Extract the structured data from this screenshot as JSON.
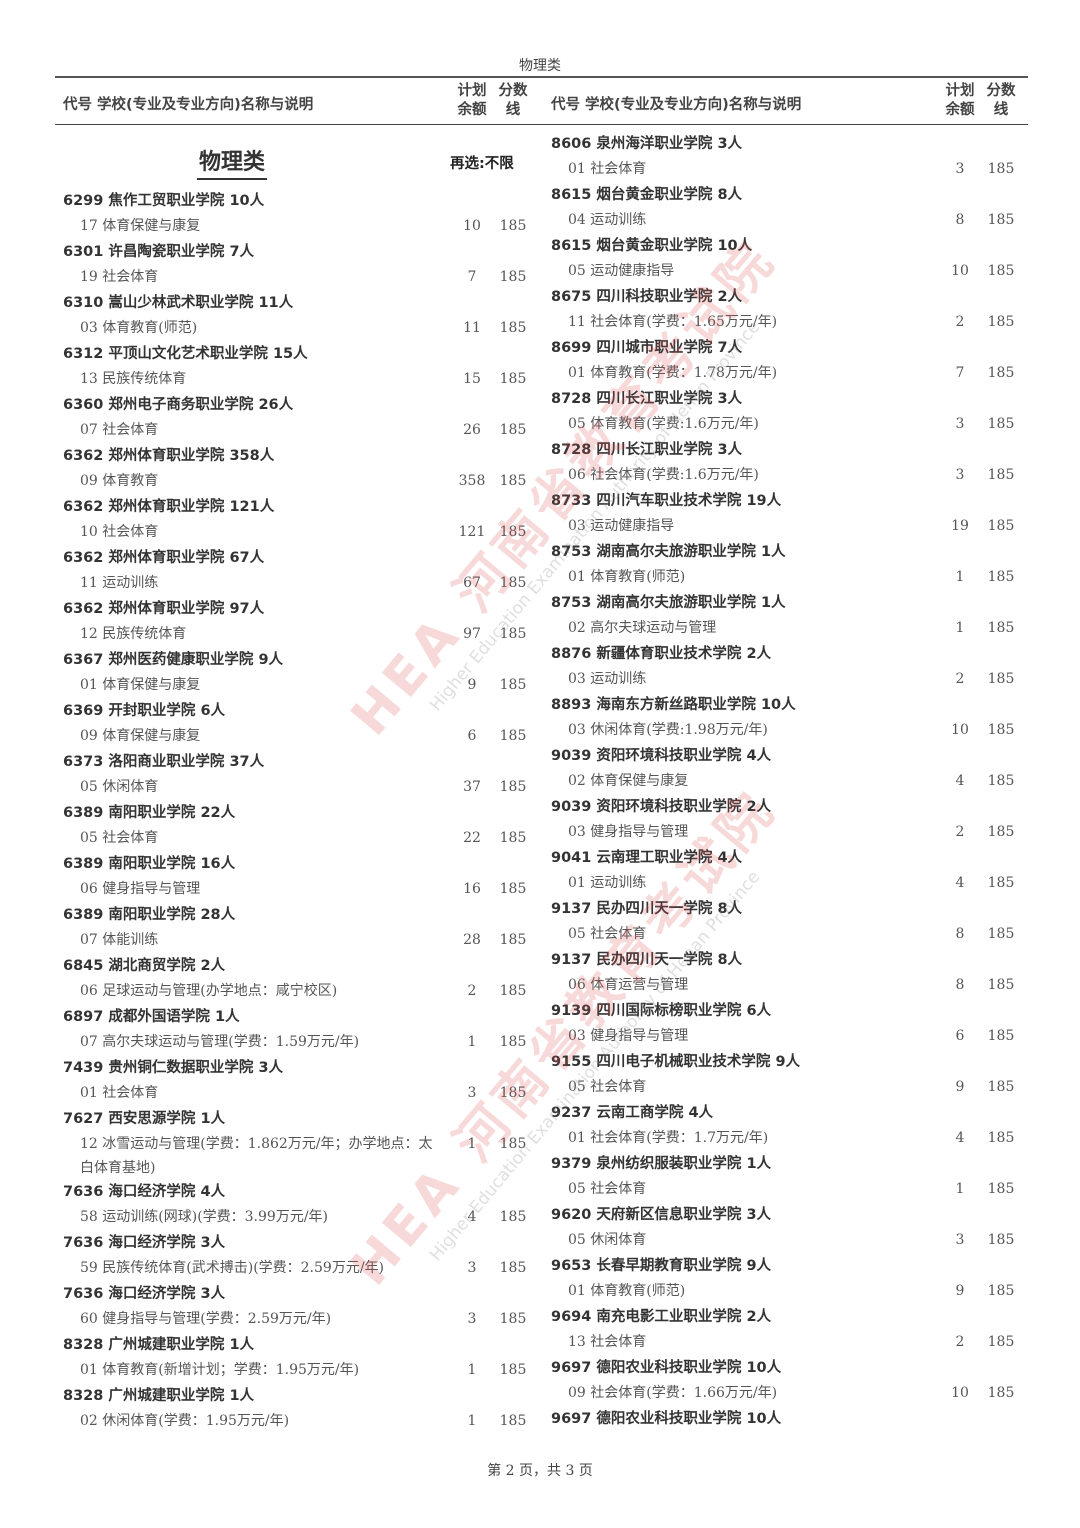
{
  "page_title": "物理类",
  "header": {
    "desc": "代号 学校(专业及专业方向)名称与说明",
    "plan_line1": "计划",
    "plan_line2": "余额",
    "score_line1": "分数",
    "score_line2": "线"
  },
  "category": {
    "title": "物理类",
    "note": "再选:不限"
  },
  "watermark": {
    "text": "HEA 河南省教育考试院",
    "subtext": "Higher Education Examination Authority of Henan Province",
    "color": "#dc5050"
  },
  "left_entries": [
    {
      "school": "6299 焦作工贸职业学院 10人",
      "major": "17 体育保健与康复",
      "plan": "10",
      "score": "185"
    },
    {
      "school": "6301 许昌陶瓷职业学院 7人",
      "major": "19 社会体育",
      "plan": "7",
      "score": "185"
    },
    {
      "school": "6310 嵩山少林武术职业学院 11人",
      "major": "03 体育教育(师范)",
      "plan": "11",
      "score": "185"
    },
    {
      "school": "6312 平顶山文化艺术职业学院 15人",
      "major": "13 民族传统体育",
      "plan": "15",
      "score": "185"
    },
    {
      "school": "6360 郑州电子商务职业学院 26人",
      "major": "07 社会体育",
      "plan": "26",
      "score": "185"
    },
    {
      "school": "6362 郑州体育职业学院 358人",
      "major": "09 体育教育",
      "plan": "358",
      "score": "185"
    },
    {
      "school": "6362 郑州体育职业学院 121人",
      "major": "10 社会体育",
      "plan": "121",
      "score": "185"
    },
    {
      "school": "6362 郑州体育职业学院 67人",
      "major": "11 运动训练",
      "plan": "67",
      "score": "185"
    },
    {
      "school": "6362 郑州体育职业学院 97人",
      "major": "12 民族传统体育",
      "plan": "97",
      "score": "185"
    },
    {
      "school": "6367 郑州医药健康职业学院 9人",
      "major": "01 体育保健与康复",
      "plan": "9",
      "score": "185"
    },
    {
      "school": "6369 开封职业学院 6人",
      "major": "09 体育保健与康复",
      "plan": "6",
      "score": "185"
    },
    {
      "school": "6373 洛阳商业职业学院 37人",
      "major": "05 休闲体育",
      "plan": "37",
      "score": "185"
    },
    {
      "school": "6389 南阳职业学院 22人",
      "major": "05 社会体育",
      "plan": "22",
      "score": "185"
    },
    {
      "school": "6389 南阳职业学院 16人",
      "major": "06 健身指导与管理",
      "plan": "16",
      "score": "185"
    },
    {
      "school": "6389 南阳职业学院 28人",
      "major": "07 体能训练",
      "plan": "28",
      "score": "185"
    },
    {
      "school": "6845 湖北商贸学院 2人",
      "major": "06 足球运动与管理(办学地点：咸宁校区)",
      "plan": "2",
      "score": "185"
    },
    {
      "school": "6897 成都外国语学院 1人",
      "major": "07 高尔夫球运动与管理(学费：1.59万元/年)",
      "plan": "1",
      "score": "185"
    },
    {
      "school": "7439 贵州铜仁数据职业学院 3人",
      "major": "01 社会体育",
      "plan": "3",
      "score": "185"
    },
    {
      "school": "7627 西安思源学院 1人",
      "major": "12 冰雪运动与管理(学费：1.862万元/年；办学地点：太白体育基地)",
      "plan": "1",
      "score": "185"
    },
    {
      "school": "7636 海口经济学院 4人",
      "major": "58 运动训练(网球)(学费：3.99万元/年)",
      "plan": "4",
      "score": "185"
    },
    {
      "school": "7636 海口经济学院 3人",
      "major": "59 民族传统体育(武术搏击)(学费：2.59万元/年)",
      "plan": "3",
      "score": "185"
    },
    {
      "school": "7636 海口经济学院 3人",
      "major": "60 健身指导与管理(学费：2.59万元/年)",
      "plan": "3",
      "score": "185"
    },
    {
      "school": "8328 广州城建职业学院 1人",
      "major": "01 体育教育(新增计划；学费：1.95万元/年)",
      "plan": "1",
      "score": "185"
    },
    {
      "school": "8328 广州城建职业学院 1人",
      "major": "02 休闲体育(学费：1.95万元/年)",
      "plan": "1",
      "score": "185"
    }
  ],
  "right_entries": [
    {
      "school": "8606 泉州海洋职业学院 3人",
      "major": "01 社会体育",
      "plan": "3",
      "score": "185"
    },
    {
      "school": "8615 烟台黄金职业学院 8人",
      "major": "04 运动训练",
      "plan": "8",
      "score": "185"
    },
    {
      "school": "8615 烟台黄金职业学院 10人",
      "major": "05 运动健康指导",
      "plan": "10",
      "score": "185"
    },
    {
      "school": "8675 四川科技职业学院 2人",
      "major": "11 社会体育(学费：1.65万元/年)",
      "plan": "2",
      "score": "185"
    },
    {
      "school": "8699 四川城市职业学院 7人",
      "major": "01 体育教育(学费：1.78万元/年)",
      "plan": "7",
      "score": "185"
    },
    {
      "school": "8728 四川长江职业学院 3人",
      "major": "05 体育教育(学费:1.6万元/年)",
      "plan": "3",
      "score": "185"
    },
    {
      "school": "8728 四川长江职业学院 3人",
      "major": "06 社会体育(学费:1.6万元/年)",
      "plan": "3",
      "score": "185"
    },
    {
      "school": "8733 四川汽车职业技术学院 19人",
      "major": "03 运动健康指导",
      "plan": "19",
      "score": "185"
    },
    {
      "school": "8753 湖南高尔夫旅游职业学院 1人",
      "major": "01 体育教育(师范)",
      "plan": "1",
      "score": "185"
    },
    {
      "school": "8753 湖南高尔夫旅游职业学院 1人",
      "major": "02 高尔夫球运动与管理",
      "plan": "1",
      "score": "185"
    },
    {
      "school": "8876 新疆体育职业技术学院 2人",
      "major": "03 运动训练",
      "plan": "2",
      "score": "185"
    },
    {
      "school": "8893 海南东方新丝路职业学院 10人",
      "major": "03 休闲体育(学费:1.98万元/年)",
      "plan": "10",
      "score": "185"
    },
    {
      "school": "9039 资阳环境科技职业学院 4人",
      "major": "02 体育保健与康复",
      "plan": "4",
      "score": "185"
    },
    {
      "school": "9039 资阳环境科技职业学院 2人",
      "major": "03 健身指导与管理",
      "plan": "2",
      "score": "185"
    },
    {
      "school": "9041 云南理工职业学院 4人",
      "major": "01 运动训练",
      "plan": "4",
      "score": "185"
    },
    {
      "school": "9137 民办四川天一学院 8人",
      "major": "05 社会体育",
      "plan": "8",
      "score": "185"
    },
    {
      "school": "9137 民办四川天一学院 8人",
      "major": "06 体育运营与管理",
      "plan": "8",
      "score": "185"
    },
    {
      "school": "9139 四川国际标榜职业学院 6人",
      "major": "03 健身指导与管理",
      "plan": "6",
      "score": "185"
    },
    {
      "school": "9155 四川电子机械职业技术学院 9人",
      "major": "05 社会体育",
      "plan": "9",
      "score": "185"
    },
    {
      "school": "9237 云南工商学院 4人",
      "major": "01 社会体育(学费：1.7万元/年)",
      "plan": "4",
      "score": "185"
    },
    {
      "school": "9379 泉州纺织服装职业学院 1人",
      "major": "05 社会体育",
      "plan": "1",
      "score": "185"
    },
    {
      "school": "9620 天府新区信息职业学院 3人",
      "major": "05 休闲体育",
      "plan": "3",
      "score": "185"
    },
    {
      "school": "9653 长春早期教育职业学院 9人",
      "major": "01 体育教育(师范)",
      "plan": "9",
      "score": "185"
    },
    {
      "school": "9694 南充电影工业职业学院 2人",
      "major": "13 社会体育",
      "plan": "2",
      "score": "185"
    },
    {
      "school": "9697 德阳农业科技职业学院 10人",
      "major": "09 社会体育(学费：1.66万元/年)",
      "plan": "10",
      "score": "185"
    },
    {
      "school": "9697 德阳农业科技职业学院 10人"
    }
  ],
  "footer": "第 2 页，共 3 页"
}
